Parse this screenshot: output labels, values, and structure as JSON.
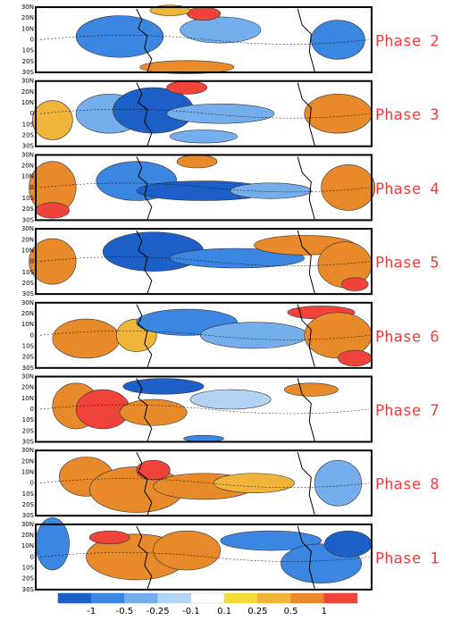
{
  "lat_labels": [
    "30N",
    "20N",
    "10N",
    "0",
    "10S",
    "20S",
    "30S"
  ],
  "panels": [
    {
      "label": "Phase 2"
    },
    {
      "label": "Phase 3"
    },
    {
      "label": "Phase 4"
    },
    {
      "label": "Phase 5"
    },
    {
      "label": "Phase 6"
    },
    {
      "label": "Phase 7"
    },
    {
      "label": "Phase 8"
    },
    {
      "label": "Phase 1"
    }
  ],
  "colorbar": {
    "ticks": [
      -1,
      -0.5,
      -0.25,
      -0.1,
      0.1,
      0.25,
      0.5,
      1
    ],
    "colors": [
      "#1c5fc7",
      "#3b86e0",
      "#74aeec",
      "#b3d4f5",
      "#ffffff",
      "#f2dd38",
      "#f0b43a",
      "#e98a2a",
      "#f0443a"
    ]
  }
}
